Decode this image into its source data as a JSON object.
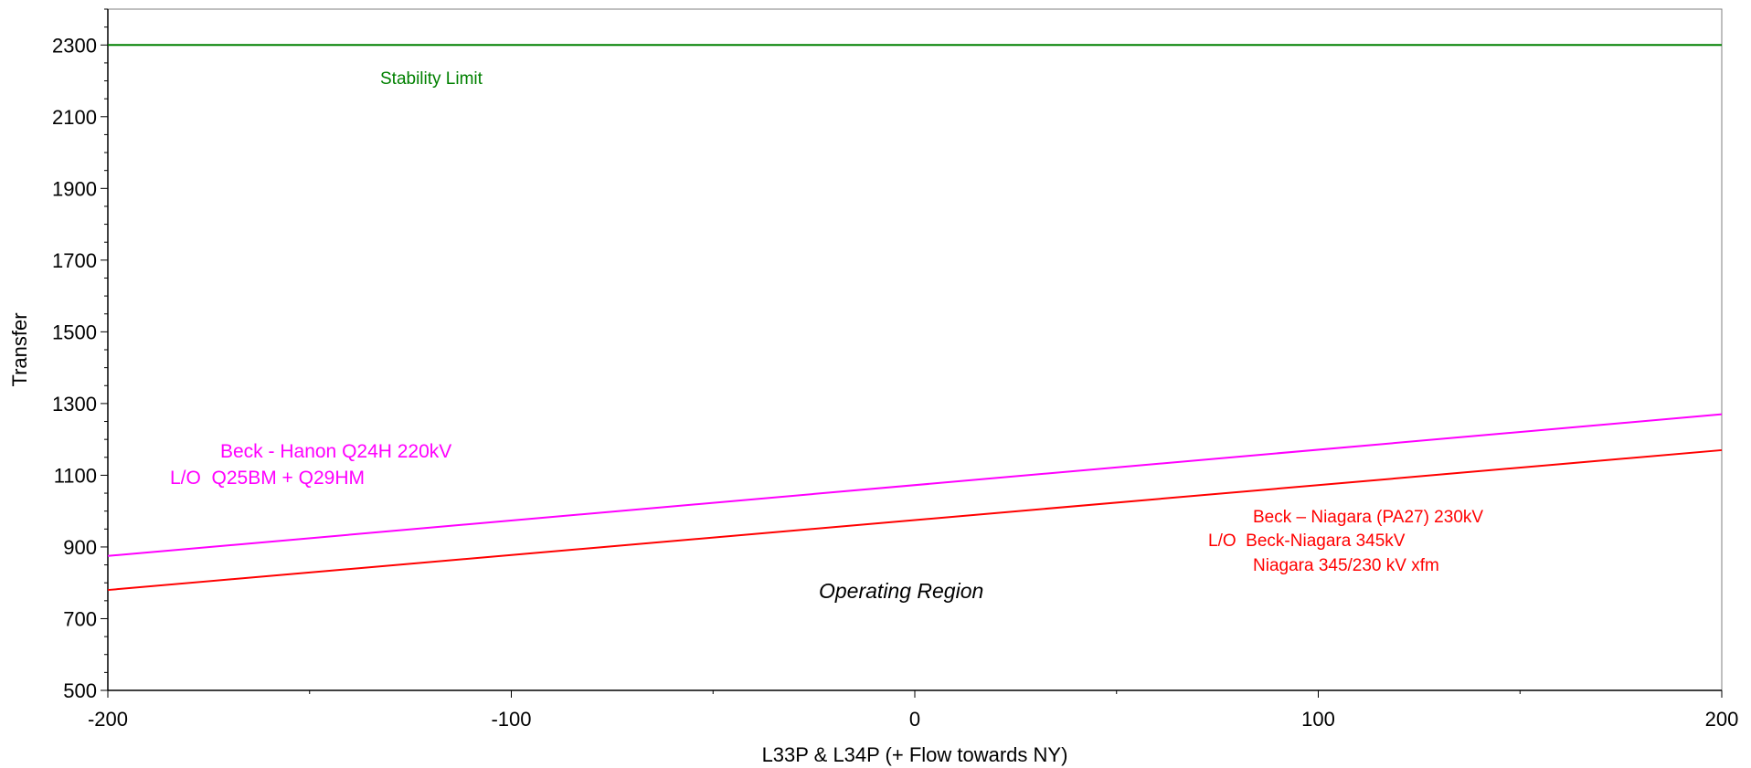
{
  "chart_data": {
    "type": "line",
    "title": "",
    "xlabel": "L33P & L34P (+ Flow towards NY)",
    "ylabel": "Transfer",
    "xlim": [
      -200,
      200
    ],
    "ylim": [
      500,
      2400
    ],
    "xticks": [
      -200,
      -100,
      0,
      100,
      200
    ],
    "yticks": [
      500,
      700,
      900,
      1100,
      1300,
      1500,
      1700,
      1900,
      2100,
      2300
    ],
    "grid": false,
    "series": [
      {
        "color": "#008000",
        "x": [
          -200,
          200
        ],
        "y": [
          2300,
          2300
        ]
      },
      {
        "color": "#ff00ff",
        "x": [
          -200,
          200
        ],
        "y": [
          875,
          1270
        ]
      },
      {
        "color": "#ff0000",
        "x": [
          -200,
          200
        ],
        "y": [
          780,
          1170
        ]
      }
    ],
    "annotations": {
      "stability": {
        "text": "Stability Limit",
        "color": "#008000"
      },
      "magenta_line1": {
        "text": "Beck - Hanon Q24H 220kV",
        "color": "#ff00ff"
      },
      "magenta_line2": {
        "text": "L/O  Q25BM + Q29HM",
        "color": "#ff00ff"
      },
      "red_line1": {
        "text": "Beck – Niagara (PA27) 230kV",
        "color": "#ff0000"
      },
      "red_line2": {
        "text": "L/O  Beck-Niagara 345kV",
        "color": "#ff0000"
      },
      "red_line3": {
        "text": "Niagara 345/230 kV xfm",
        "color": "#ff0000"
      },
      "region": {
        "text": "Operating Region",
        "color": "#000000"
      }
    }
  }
}
